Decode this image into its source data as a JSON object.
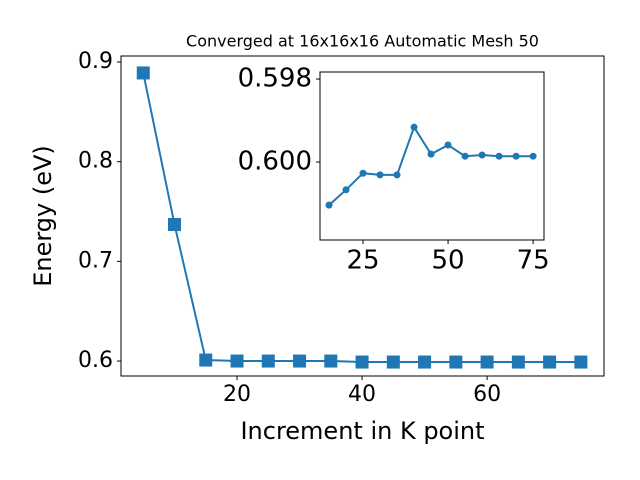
{
  "chart_data": [
    {
      "type": "line",
      "title": "Converged at 16x16x16 Automatic Mesh 50",
      "x_label": "Increment in K point",
      "y_label": "Energy (eV)",
      "x": [
        5,
        10,
        15,
        20,
        25,
        30,
        35,
        40,
        45,
        50,
        55,
        60,
        65,
        70,
        75
      ],
      "series": [
        {
          "color": "#1f77b4",
          "marker": "square",
          "values": [
            0.889,
            0.737,
            0.601,
            0.6,
            0.6,
            0.6,
            0.6,
            0.599,
            0.599,
            0.599,
            0.599,
            0.599,
            0.599,
            0.599,
            0.599
          ]
        }
      ],
      "xlim": [
        1.44,
        78.7
      ],
      "xticks": [
        20,
        40,
        60
      ],
      "ylim": [
        0.585,
        0.906
      ],
      "yticks": [
        0.6,
        0.7,
        0.8,
        0.9
      ]
    },
    {
      "type": "line",
      "x": [
        15,
        20,
        25,
        30,
        35,
        40,
        45,
        50,
        55,
        60,
        65,
        70,
        75
      ],
      "series": [
        {
          "color": "#1f77b4",
          "marker": "circle",
          "values": [
            0.60104,
            0.60067,
            0.60027,
            0.60031,
            0.60031,
            0.59916,
            0.59981,
            0.59959,
            0.59986,
            0.59983,
            0.59986,
            0.59986,
            0.59986
          ]
        }
      ],
      "xlim": [
        12.35,
        78.2
      ],
      "xticks": [
        25,
        50,
        75
      ],
      "ylim": [
        0.60188,
        0.59783
      ],
      "yticks": [
        0.598,
        {
          "value": 0.6,
          "label": "0.600"
        }
      ]
    }
  ]
}
